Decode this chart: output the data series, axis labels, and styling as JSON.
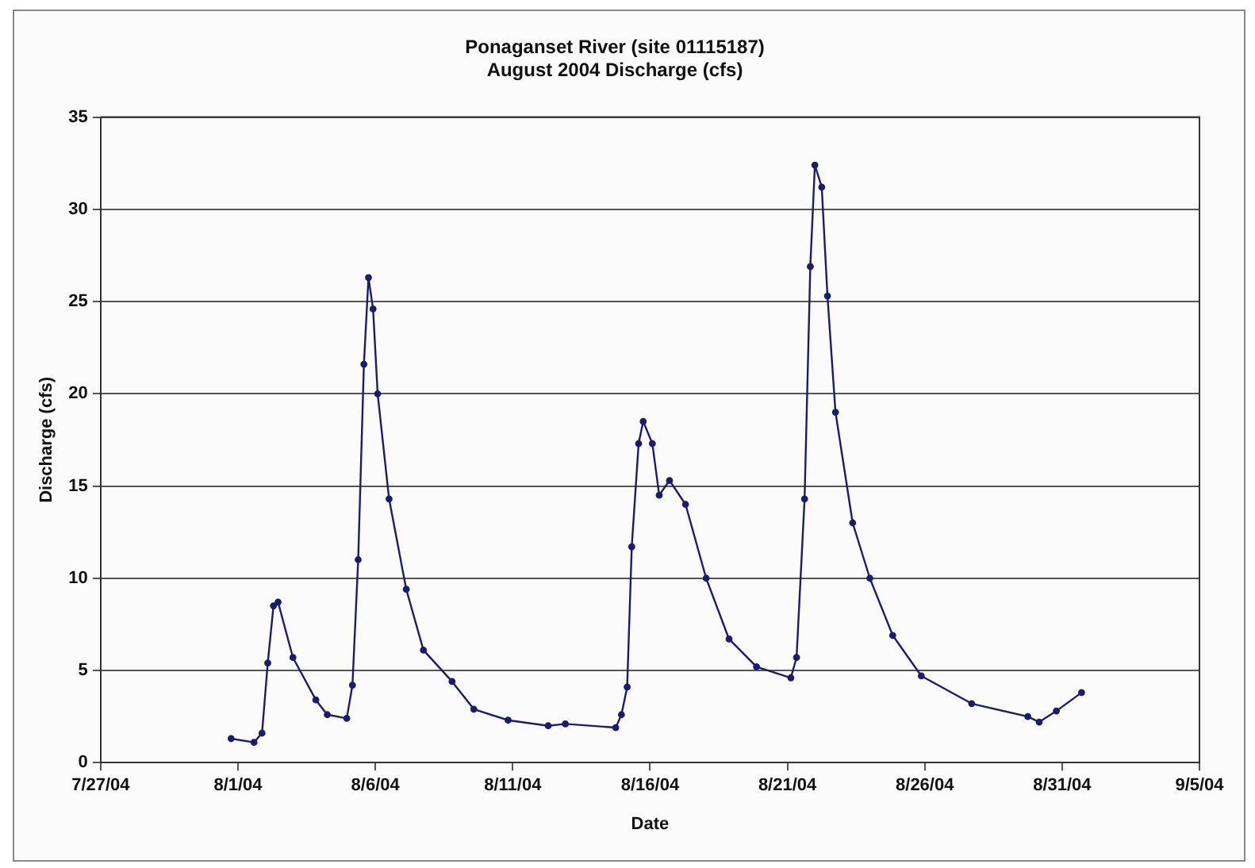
{
  "chart_data": {
    "type": "line",
    "title": "Ponaganset River (site 01115187)\nAugust 2004 Discharge (cfs)",
    "xlabel": "Date",
    "ylabel": "Discharge (cfs)",
    "x": [
      "2004-07-31T18:00",
      "2004-08-01T14:00",
      "2004-08-01T21:00",
      "2004-08-02T02:00",
      "2004-08-02T07:00",
      "2004-08-02T11:00",
      "2004-08-03T00:00",
      "2004-08-03T20:00",
      "2004-08-04T06:00",
      "2004-08-04T23:00",
      "2004-08-05T04:00",
      "2004-08-05T09:00",
      "2004-08-05T14:00",
      "2004-08-05T18:00",
      "2004-08-05T22:00",
      "2004-08-06T02:00",
      "2004-08-06T12:00",
      "2004-08-07T03:00",
      "2004-08-07T18:00",
      "2004-08-08T19:00",
      "2004-08-09T14:00",
      "2004-08-10T20:00",
      "2004-08-12T07:00",
      "2004-08-12T22:00",
      "2004-08-14T18:00",
      "2004-08-14T23:00",
      "2004-08-15T04:00",
      "2004-08-15T08:00",
      "2004-08-15T14:00",
      "2004-08-15T18:00",
      "2004-08-16T02:00",
      "2004-08-16T08:00",
      "2004-08-16T17:00",
      "2004-08-17T07:00",
      "2004-08-18T01:00",
      "2004-08-18T21:00",
      "2004-08-19T21:00",
      "2004-08-21T03:00",
      "2004-08-21T08:00",
      "2004-08-21T15:00",
      "2004-08-21T20:00",
      "2004-08-22T00:00",
      "2004-08-22T06:00",
      "2004-08-22T11:00",
      "2004-08-22T18:00",
      "2004-08-23T09:00",
      "2004-08-24T00:00",
      "2004-08-24T20:00",
      "2004-08-25T21:00",
      "2004-08-27T17:00",
      "2004-08-29T18:00",
      "2004-08-30T04:00",
      "2004-08-30T19:00",
      "2004-08-31T17:00"
    ],
    "series": [
      {
        "color": "#1c1c6e",
        "values": [
          1.3,
          1.1,
          1.6,
          5.4,
          8.5,
          8.7,
          5.7,
          3.4,
          2.6,
          2.4,
          4.2,
          11,
          21.6,
          26.3,
          24.6,
          20,
          14.3,
          9.4,
          6.1,
          4.4,
          2.9,
          2.3,
          2.0,
          2.1,
          1.9,
          2.6,
          4.1,
          11.7,
          17.3,
          18.5,
          17.3,
          14.5,
          15.3,
          14,
          10,
          6.7,
          5.2,
          4.6,
          5.7,
          14.3,
          26.9,
          32.4,
          31.2,
          25.3,
          19,
          13,
          10,
          6.9,
          4.7,
          3.2,
          2.5,
          2.2,
          2.8,
          3.8
        ]
      }
    ],
    "xlim": [
      "2004-07-27",
      "2004-09-05"
    ],
    "xticks": [
      {
        "value": "2004-07-27",
        "label": "7/27/04"
      },
      {
        "value": "2004-08-01",
        "label": "8/1/04"
      },
      {
        "value": "2004-08-06",
        "label": "8/6/04"
      },
      {
        "value": "2004-08-11",
        "label": "8/11/04"
      },
      {
        "value": "2004-08-16",
        "label": "8/16/04"
      },
      {
        "value": "2004-08-21",
        "label": "8/21/04"
      },
      {
        "value": "2004-08-26",
        "label": "8/26/04"
      },
      {
        "value": "2004-08-31",
        "label": "8/31/04"
      },
      {
        "value": "2004-09-05",
        "label": "9/5/04"
      }
    ],
    "ylim": [
      0,
      35
    ],
    "yticks": [
      0,
      5,
      10,
      15,
      20,
      25,
      30,
      35
    ],
    "grid": "y",
    "legend": false,
    "marker": "circle",
    "line_style": "solid"
  }
}
